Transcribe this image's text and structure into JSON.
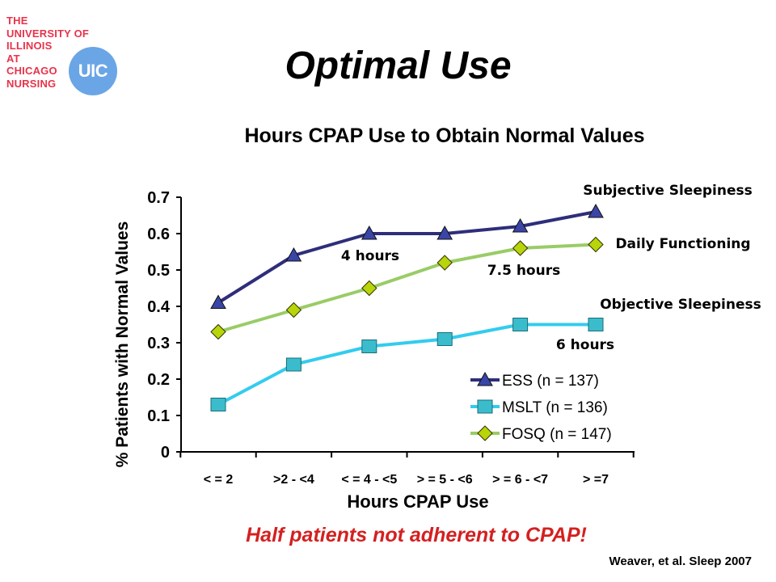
{
  "logo": {
    "lines": [
      "THE",
      "UNIVERSITY OF",
      "ILLINOIS",
      "AT",
      "CHICAGO",
      "NURSING"
    ],
    "badge": "UIC",
    "color": "#e8334a",
    "badge_color": "#6aa6e6"
  },
  "slide": {
    "title": "Optimal Use",
    "footer_note": "Half patients not adherent to CPAP!",
    "citation": "Weaver, et al. Sleep 2007"
  },
  "chart_data": {
    "type": "line",
    "title": "Hours CPAP Use to Obtain Normal Values",
    "xlabel": "Hours CPAP Use",
    "ylabel": "% Patients with Normal Values",
    "categories": [
      "< = 2",
      ">2 - <4",
      "< = 4 - <5",
      "> = 5 - <6",
      "> = 6 - <7",
      "> =7"
    ],
    "ylim": [
      0,
      0.7
    ],
    "yticks": [
      "0",
      "0.1",
      "0.2",
      "0.3",
      "0.4",
      "0.5",
      "0.6",
      "0.7"
    ],
    "grid": false,
    "legend_position": "bottom-right",
    "series": [
      {
        "name": "ESS (n = 137)",
        "values": [
          0.41,
          0.54,
          0.6,
          0.6,
          0.62,
          0.66
        ],
        "color": "#2e2e7a",
        "marker": "triangle",
        "marker_color": "#3a45a8"
      },
      {
        "name": "MSLT (n = 136)",
        "values": [
          0.13,
          0.24,
          0.29,
          0.31,
          0.35,
          0.35
        ],
        "color": "#33ccee",
        "marker": "square",
        "marker_color": "#3bbccc"
      },
      {
        "name": "FOSQ (n = 147)",
        "values": [
          0.33,
          0.39,
          0.45,
          0.52,
          0.56,
          0.57
        ],
        "color": "#99cc66",
        "marker": "diamond",
        "marker_color": "#b8d40a"
      }
    ],
    "annotations": [
      {
        "text": "Subjective Sleepiness"
      },
      {
        "text": "Daily Functioning"
      },
      {
        "text": "Objective Sleepiness"
      },
      {
        "text": "4 hours"
      },
      {
        "text": "7.5 hours"
      },
      {
        "text": "6 hours"
      }
    ]
  }
}
